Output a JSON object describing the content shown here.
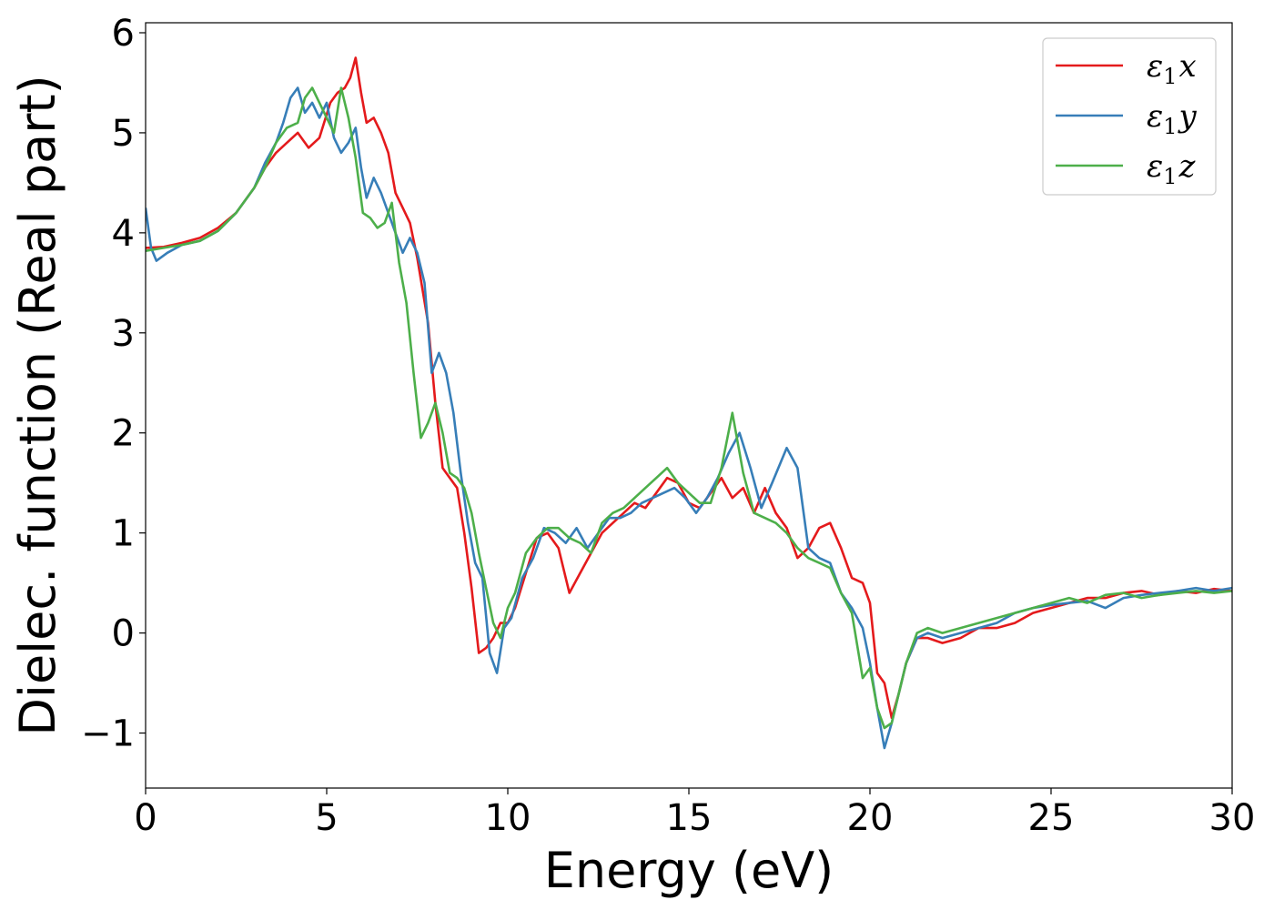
{
  "chart_data": {
    "type": "line",
    "xlabel": "Energy (eV)",
    "ylabel": "Dielec. function (Real part)",
    "xlim": [
      0,
      30
    ],
    "ylim": [
      -1.55,
      6.1
    ],
    "xticks": [
      0,
      5,
      10,
      15,
      20,
      25,
      30
    ],
    "xtick_labels": [
      "0",
      "5",
      "10",
      "15",
      "20",
      "25",
      "30"
    ],
    "yticks": [
      -1,
      0,
      1,
      2,
      3,
      4,
      5,
      6
    ],
    "ytick_labels": [
      "−1",
      "0",
      "1",
      "2",
      "3",
      "4",
      "5",
      "6"
    ],
    "grid": false,
    "legend_position": "top-right",
    "series": [
      {
        "name": "ε₁x",
        "legend_main": "ε",
        "legend_sub": "1",
        "legend_var": "x",
        "color": "#e41a1c",
        "x": [
          0,
          0.5,
          1,
          1.5,
          2,
          2.5,
          3,
          3.3,
          3.6,
          3.9,
          4.2,
          4.5,
          4.8,
          5.1,
          5.3,
          5.5,
          5.65,
          5.8,
          5.95,
          6.1,
          6.3,
          6.5,
          6.7,
          6.9,
          7.1,
          7.3,
          7.5,
          7.8,
          8.0,
          8.2,
          8.4,
          8.6,
          8.8,
          9.0,
          9.2,
          9.4,
          9.6,
          9.8,
          10.0,
          10.2,
          10.5,
          10.8,
          11.1,
          11.4,
          11.7,
          12.0,
          12.3,
          12.6,
          12.9,
          13.2,
          13.5,
          13.8,
          14.1,
          14.4,
          14.7,
          15.0,
          15.3,
          15.6,
          15.9,
          16.2,
          16.5,
          16.8,
          17.1,
          17.4,
          17.7,
          18.0,
          18.3,
          18.6,
          18.9,
          19.2,
          19.5,
          19.8,
          20.0,
          20.2,
          20.4,
          20.6,
          20.8,
          21.0,
          21.3,
          21.6,
          22.0,
          22.5,
          23.0,
          23.5,
          24.0,
          24.5,
          25.0,
          25.5,
          26.0,
          26.5,
          27.0,
          27.5,
          28.0,
          28.5,
          29.0,
          29.5,
          30.0
        ],
        "y": [
          3.85,
          3.86,
          3.9,
          3.95,
          4.05,
          4.2,
          4.45,
          4.65,
          4.8,
          4.9,
          5.0,
          4.85,
          4.95,
          5.3,
          5.4,
          5.45,
          5.55,
          5.75,
          5.4,
          5.1,
          5.15,
          5.0,
          4.8,
          4.4,
          4.25,
          4.1,
          3.75,
          3.1,
          2.3,
          1.65,
          1.55,
          1.45,
          1.0,
          0.45,
          -0.2,
          -0.15,
          -0.05,
          0.1,
          0.1,
          0.25,
          0.6,
          0.95,
          1.0,
          0.85,
          0.4,
          0.6,
          0.8,
          1.0,
          1.1,
          1.2,
          1.3,
          1.25,
          1.4,
          1.55,
          1.5,
          1.3,
          1.25,
          1.4,
          1.55,
          1.35,
          1.45,
          1.2,
          1.45,
          1.2,
          1.05,
          0.75,
          0.85,
          1.05,
          1.1,
          0.85,
          0.55,
          0.5,
          0.3,
          -0.4,
          -0.5,
          -0.85,
          -0.6,
          -0.3,
          -0.05,
          -0.05,
          -0.1,
          -0.05,
          0.05,
          0.05,
          0.1,
          0.2,
          0.25,
          0.3,
          0.35,
          0.35,
          0.4,
          0.42,
          0.38,
          0.42,
          0.4,
          0.44,
          0.42
        ]
      },
      {
        "name": "ε₁y",
        "legend_main": "ε",
        "legend_sub": "1",
        "legend_var": "y",
        "color": "#377eb8",
        "x": [
          0,
          0.15,
          0.3,
          0.6,
          1,
          1.5,
          2,
          2.5,
          3,
          3.3,
          3.6,
          3.8,
          4.0,
          4.2,
          4.4,
          4.6,
          4.8,
          5.0,
          5.2,
          5.4,
          5.6,
          5.8,
          5.95,
          6.1,
          6.3,
          6.5,
          6.7,
          6.9,
          7.1,
          7.3,
          7.5,
          7.7,
          7.9,
          8.1,
          8.3,
          8.5,
          8.7,
          8.9,
          9.1,
          9.3,
          9.5,
          9.7,
          9.9,
          10.1,
          10.4,
          10.7,
          11.0,
          11.3,
          11.6,
          11.9,
          12.2,
          12.5,
          12.8,
          13.1,
          13.4,
          13.7,
          14.0,
          14.3,
          14.6,
          14.9,
          15.2,
          15.5,
          15.8,
          16.1,
          16.4,
          16.7,
          17.0,
          17.3,
          17.7,
          18.0,
          18.3,
          18.6,
          18.9,
          19.2,
          19.5,
          19.8,
          20.0,
          20.2,
          20.4,
          20.6,
          20.8,
          21.0,
          21.3,
          21.6,
          22.0,
          22.5,
          23.0,
          23.5,
          24.0,
          24.5,
          25.0,
          25.5,
          26.0,
          26.5,
          27.0,
          27.5,
          28.0,
          28.5,
          29.0,
          29.5,
          30.0
        ],
        "y": [
          4.25,
          3.85,
          3.72,
          3.8,
          3.88,
          3.92,
          4.02,
          4.2,
          4.45,
          4.7,
          4.9,
          5.1,
          5.35,
          5.45,
          5.2,
          5.3,
          5.15,
          5.3,
          4.95,
          4.8,
          4.9,
          5.05,
          4.65,
          4.35,
          4.55,
          4.4,
          4.2,
          4.0,
          3.8,
          3.95,
          3.8,
          3.5,
          2.6,
          2.8,
          2.6,
          2.2,
          1.6,
          1.1,
          0.7,
          0.55,
          -0.2,
          -0.4,
          0.05,
          0.15,
          0.55,
          0.75,
          1.05,
          1.0,
          0.9,
          1.05,
          0.85,
          1.0,
          1.15,
          1.15,
          1.2,
          1.3,
          1.35,
          1.4,
          1.45,
          1.35,
          1.2,
          1.35,
          1.55,
          1.8,
          2.0,
          1.65,
          1.25,
          1.5,
          1.85,
          1.65,
          0.85,
          0.75,
          0.7,
          0.4,
          0.25,
          0.05,
          -0.3,
          -0.75,
          -1.15,
          -0.9,
          -0.6,
          -0.3,
          -0.05,
          0.0,
          -0.05,
          0.0,
          0.05,
          0.1,
          0.2,
          0.25,
          0.28,
          0.3,
          0.32,
          0.25,
          0.35,
          0.38,
          0.4,
          0.42,
          0.45,
          0.42,
          0.45
        ]
      },
      {
        "name": "ε₁z",
        "legend_main": "ε",
        "legend_sub": "1",
        "legend_var": "z",
        "color": "#4daf4a",
        "x": [
          0,
          0.5,
          1,
          1.5,
          2,
          2.5,
          3,
          3.3,
          3.6,
          3.9,
          4.2,
          4.4,
          4.6,
          4.8,
          5.0,
          5.2,
          5.4,
          5.6,
          5.8,
          6.0,
          6.2,
          6.4,
          6.6,
          6.8,
          7.0,
          7.2,
          7.4,
          7.6,
          7.8,
          8.0,
          8.2,
          8.4,
          8.6,
          8.8,
          9.0,
          9.2,
          9.4,
          9.6,
          9.8,
          10.0,
          10.2,
          10.5,
          10.8,
          11.1,
          11.4,
          11.7,
          12.0,
          12.3,
          12.6,
          12.9,
          13.2,
          13.5,
          13.8,
          14.1,
          14.4,
          14.7,
          15.0,
          15.3,
          15.6,
          15.9,
          16.2,
          16.5,
          16.8,
          17.1,
          17.4,
          17.7,
          18.0,
          18.3,
          18.6,
          18.9,
          19.2,
          19.5,
          19.8,
          20.0,
          20.2,
          20.4,
          20.6,
          20.8,
          21.0,
          21.3,
          21.6,
          22.0,
          22.5,
          23.0,
          23.5,
          24.0,
          24.5,
          25.0,
          25.5,
          26.0,
          26.5,
          27.0,
          27.5,
          28.0,
          28.5,
          29.0,
          29.5,
          30.0
        ],
        "y": [
          3.82,
          3.85,
          3.88,
          3.92,
          4.02,
          4.2,
          4.45,
          4.65,
          4.9,
          5.05,
          5.1,
          5.35,
          5.45,
          5.3,
          5.15,
          5.0,
          5.45,
          5.15,
          4.75,
          4.2,
          4.15,
          4.05,
          4.1,
          4.3,
          3.7,
          3.3,
          2.6,
          1.95,
          2.1,
          2.3,
          2.0,
          1.6,
          1.55,
          1.45,
          1.2,
          0.8,
          0.45,
          0.1,
          -0.05,
          0.25,
          0.4,
          0.8,
          0.95,
          1.05,
          1.05,
          0.95,
          0.9,
          0.8,
          1.1,
          1.2,
          1.25,
          1.35,
          1.45,
          1.55,
          1.65,
          1.5,
          1.4,
          1.3,
          1.3,
          1.65,
          2.2,
          1.6,
          1.2,
          1.15,
          1.1,
          1.0,
          0.85,
          0.75,
          0.7,
          0.65,
          0.4,
          0.2,
          -0.45,
          -0.35,
          -0.75,
          -0.95,
          -0.9,
          -0.6,
          -0.3,
          0.0,
          0.05,
          0.0,
          0.05,
          0.1,
          0.15,
          0.2,
          0.25,
          0.3,
          0.35,
          0.3,
          0.38,
          0.4,
          0.35,
          0.38,
          0.4,
          0.42,
          0.4,
          0.42
        ]
      }
    ]
  }
}
